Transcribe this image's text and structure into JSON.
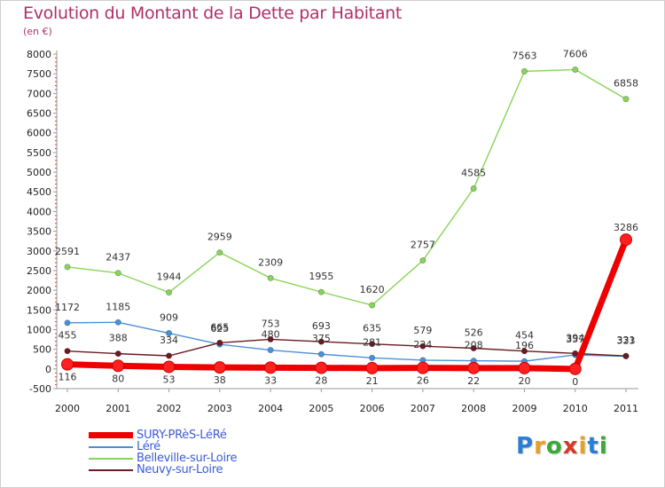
{
  "header": {
    "title": "Evolution du Montant de la Dette par Habitant",
    "subtitle": "(en €)"
  },
  "logo": {
    "text": "Proxiti",
    "colors": [
      "#2a7fd4",
      "#e8a020",
      "#3aa83a",
      "#d43a2a",
      "#e8a020",
      "#2a7fd4",
      "#3aa83a"
    ]
  },
  "chart_data": {
    "type": "line",
    "title": "Evolution du Montant de la Dette par Habitant",
    "subtitle": "(en €)",
    "xlabel": "",
    "ylabel": "",
    "x": [
      "2000",
      "2001",
      "2002",
      "2003",
      "2004",
      "2005",
      "2006",
      "2007",
      "2008",
      "2009",
      "2010",
      "2011"
    ],
    "ylim": [
      -500,
      8000
    ],
    "yticks": [
      -500,
      0,
      500,
      1000,
      1500,
      2000,
      2500,
      3000,
      3500,
      4000,
      4500,
      5000,
      5500,
      6000,
      6500,
      7000,
      7500,
      8000
    ],
    "grid": false,
    "legend_position": "bottom-left",
    "series": [
      {
        "name": "SURY-PRèS-LéRé",
        "color": "#ee0000",
        "values": [
          116,
          80,
          53,
          38,
          33,
          28,
          21,
          26,
          22,
          20,
          0,
          3286
        ],
        "labels": [
          "116",
          "80",
          "53",
          "38",
          "33",
          "28",
          "21",
          "26",
          "22",
          "20",
          "0",
          "3286"
        ]
      },
      {
        "name": "Léré",
        "color": "#4a90d9",
        "values": [
          1172,
          1185,
          909,
          625,
          480,
          375,
          281,
          224,
          208,
          196,
          357,
          323
        ],
        "labels": [
          "1172",
          "1185",
          "909",
          "625",
          "480",
          "375",
          "281",
          "224",
          "208",
          "196",
          "357",
          "323"
        ]
      },
      {
        "name": "Belleville-sur-Loire",
        "color": "#88d45a",
        "values": [
          2591,
          2437,
          1944,
          2959,
          2309,
          1955,
          1620,
          2757,
          4585,
          7563,
          7606,
          6858
        ],
        "labels": [
          "2591",
          "2437",
          "1944",
          "2959",
          "2309",
          "1955",
          "1620",
          "2757",
          "4585",
          "7563",
          "7606",
          "6858"
        ]
      },
      {
        "name": "Neuvy-sur-Loire",
        "color": "#6b1a22",
        "values": [
          455,
          388,
          334,
          665,
          753,
          693,
          635,
          579,
          526,
          454,
          394,
          331
        ],
        "labels": [
          "455",
          "388",
          "334",
          "665",
          "753",
          "693",
          "635",
          "579",
          "526",
          "454",
          "394",
          "331"
        ]
      }
    ]
  }
}
